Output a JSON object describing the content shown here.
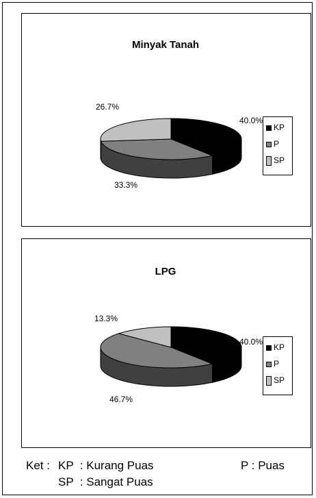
{
  "chart_data": [
    {
      "type": "pie",
      "title": "Minyak Tanah",
      "categories": [
        "KP",
        "P",
        "SP"
      ],
      "values": [
        40.0,
        33.3,
        26.7
      ],
      "data_labels": [
        "40.0%",
        "33.3%",
        "26.7%"
      ],
      "colors": [
        "#000000",
        "#808080",
        "#c0c0c0"
      ],
      "side_colors": [
        "#000000",
        "#404040",
        "#606060"
      ],
      "legend": [
        "KP",
        "P",
        "SP"
      ],
      "legend_placement": "right",
      "style": "3d"
    },
    {
      "type": "pie",
      "title": "LPG",
      "categories": [
        "KP",
        "P",
        "SP"
      ],
      "values": [
        40.0,
        46.7,
        13.3
      ],
      "data_labels": [
        "40.0%",
        "46.7%",
        "13.3%"
      ],
      "colors": [
        "#000000",
        "#808080",
        "#c0c0c0"
      ],
      "side_colors": [
        "#000000",
        "#404040",
        "#606060"
      ],
      "legend": [
        "KP",
        "P",
        "SP"
      ],
      "legend_placement": "right",
      "style": "3d"
    }
  ],
  "ket": {
    "prefix": "Ket :",
    "kp_line": "KP  : Kurang Puas",
    "p_line": "P : Puas",
    "sp_line": "SP  : Sangat Puas"
  }
}
